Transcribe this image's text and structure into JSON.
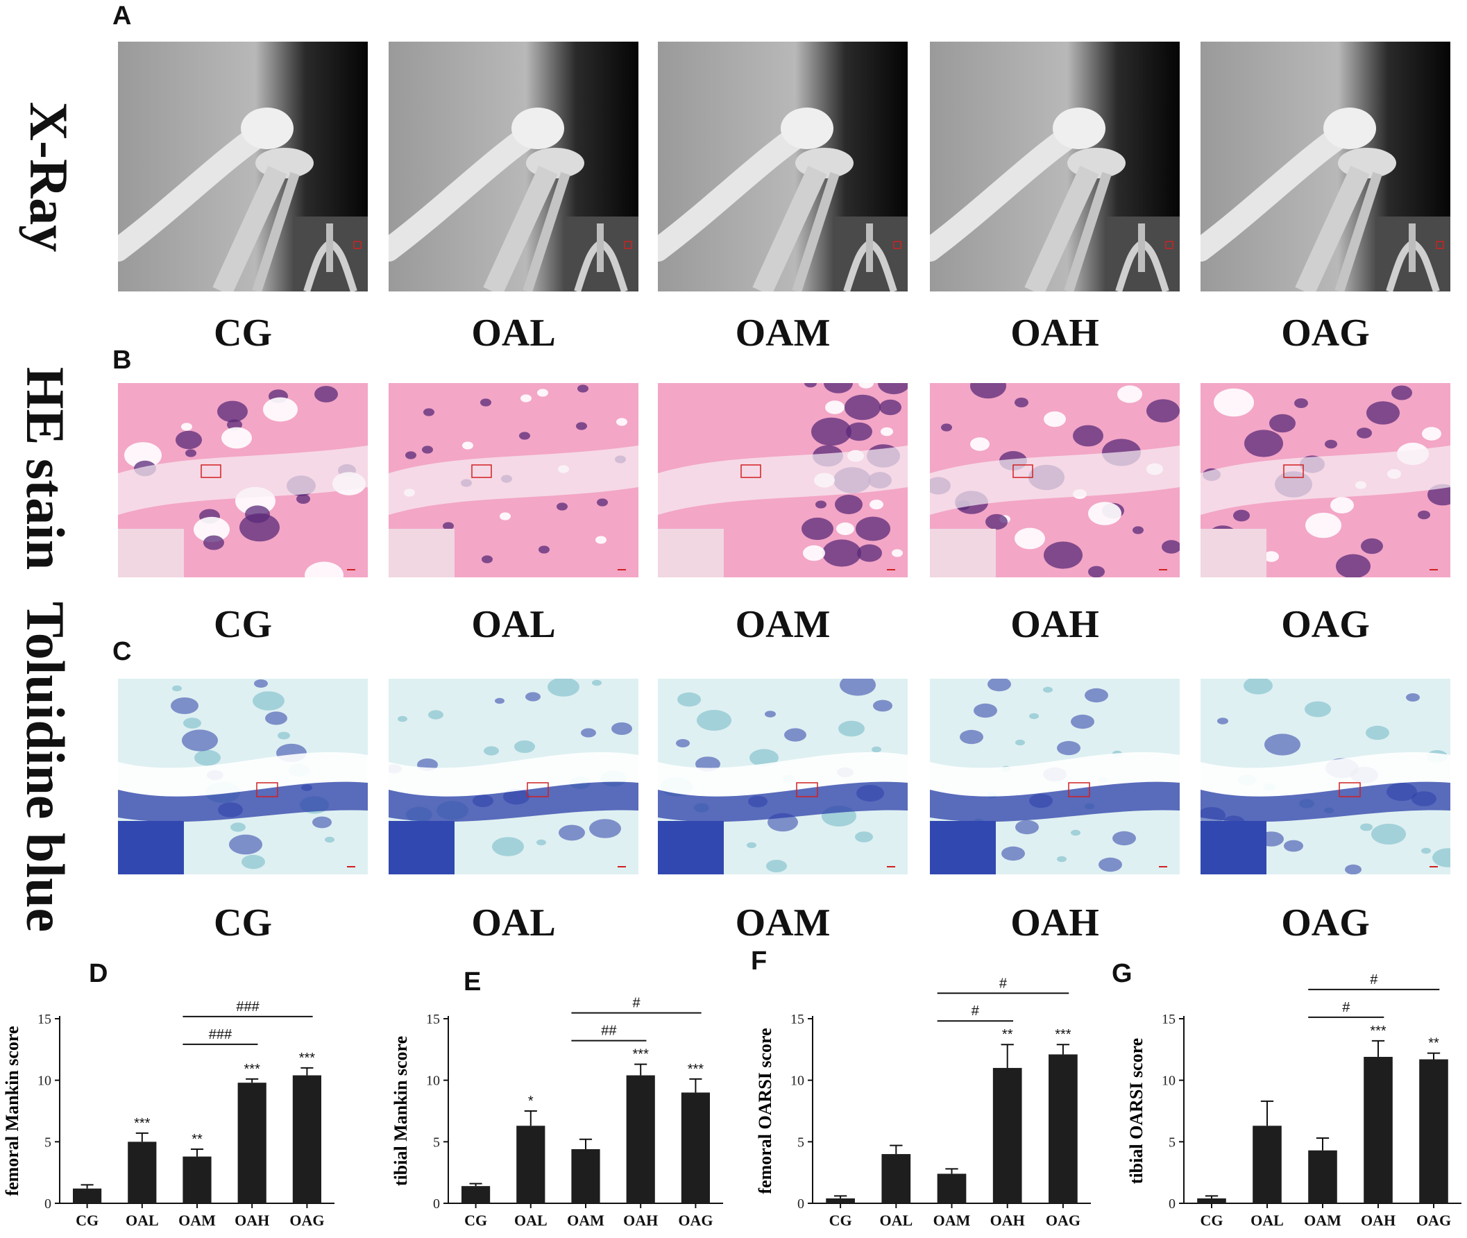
{
  "panels": {
    "a": "A",
    "b": "B",
    "c": "C",
    "d": "D",
    "e": "E",
    "f": "F",
    "g": "G"
  },
  "rows": [
    {
      "label": "X-Ray",
      "key": "xray"
    },
    {
      "label": "HE stain",
      "key": "he"
    },
    {
      "label": "Toluidine blue",
      "key": "tb"
    }
  ],
  "groups": [
    "CG",
    "OAL",
    "OAM",
    "OAH",
    "OAG"
  ],
  "colors": {
    "bar": "#1e1e1e",
    "he_bg": "#f3a6c6",
    "he_dark": "#5a2a78",
    "tb_bg": "#dff0f2",
    "tb_dark": "#2c3fa8",
    "xray_bg": "#bdbdbd"
  },
  "chart_data": [
    {
      "type": "bar",
      "ylabel": "femoral Mankin score",
      "categories": [
        "CG",
        "OAL",
        "OAM",
        "OAH",
        "OAG"
      ],
      "values": [
        1.2,
        5.0,
        3.8,
        9.8,
        10.4
      ],
      "errors": [
        0.3,
        0.7,
        0.6,
        0.3,
        0.6
      ],
      "ylim": [
        0,
        15
      ],
      "yticks": [
        "0",
        "5",
        "10",
        "15"
      ],
      "stars": [
        "",
        "***",
        "**",
        "***",
        "***"
      ],
      "brackets": [
        {
          "from": 2,
          "to": 3,
          "label": "###",
          "level": 1
        },
        {
          "from": 2,
          "to": 4,
          "label": "###",
          "level": 2
        }
      ]
    },
    {
      "type": "bar",
      "ylabel": "tibial Mankin score",
      "categories": [
        "CG",
        "OAL",
        "OAM",
        "OAH",
        "OAG"
      ],
      "values": [
        1.4,
        6.3,
        4.4,
        10.4,
        9.0
      ],
      "errors": [
        0.2,
        1.2,
        0.8,
        0.9,
        1.1
      ],
      "ylim": [
        0,
        15
      ],
      "yticks": [
        "0",
        "5",
        "10",
        "15"
      ],
      "stars": [
        "",
        "*",
        "",
        "***",
        "***"
      ],
      "brackets": [
        {
          "from": 2,
          "to": 3,
          "label": "##",
          "level": 1
        },
        {
          "from": 2,
          "to": 4,
          "label": "#",
          "level": 2
        }
      ]
    },
    {
      "type": "bar",
      "ylabel": "femoral OARSI score",
      "categories": [
        "CG",
        "OAL",
        "OAM",
        "OAH",
        "OAG"
      ],
      "values": [
        0.4,
        4.0,
        2.4,
        11.0,
        12.1
      ],
      "errors": [
        0.2,
        0.7,
        0.4,
        1.9,
        0.8
      ],
      "ylim": [
        0,
        15
      ],
      "yticks": [
        "0",
        "5",
        "10",
        "15"
      ],
      "stars": [
        "",
        "",
        "",
        "**",
        "***"
      ],
      "brackets": [
        {
          "from": 2,
          "to": 3,
          "label": "#",
          "level": 1
        },
        {
          "from": 2,
          "to": 4,
          "label": "#",
          "level": 2
        }
      ]
    },
    {
      "type": "bar",
      "ylabel": "tibial OARSI score",
      "categories": [
        "CG",
        "OAL",
        "OAM",
        "OAH",
        "OAG"
      ],
      "values": [
        0.4,
        6.3,
        4.3,
        11.9,
        11.7
      ],
      "errors": [
        0.2,
        2.0,
        1.0,
        1.3,
        0.5
      ],
      "ylim": [
        0,
        15
      ],
      "yticks": [
        "0",
        "5",
        "10",
        "15"
      ],
      "stars": [
        "",
        "",
        "",
        "***",
        "**"
      ],
      "brackets": [
        {
          "from": 2,
          "to": 3,
          "label": "#",
          "level": 1
        },
        {
          "from": 2,
          "to": 4,
          "label": "#",
          "level": 2
        }
      ]
    }
  ]
}
